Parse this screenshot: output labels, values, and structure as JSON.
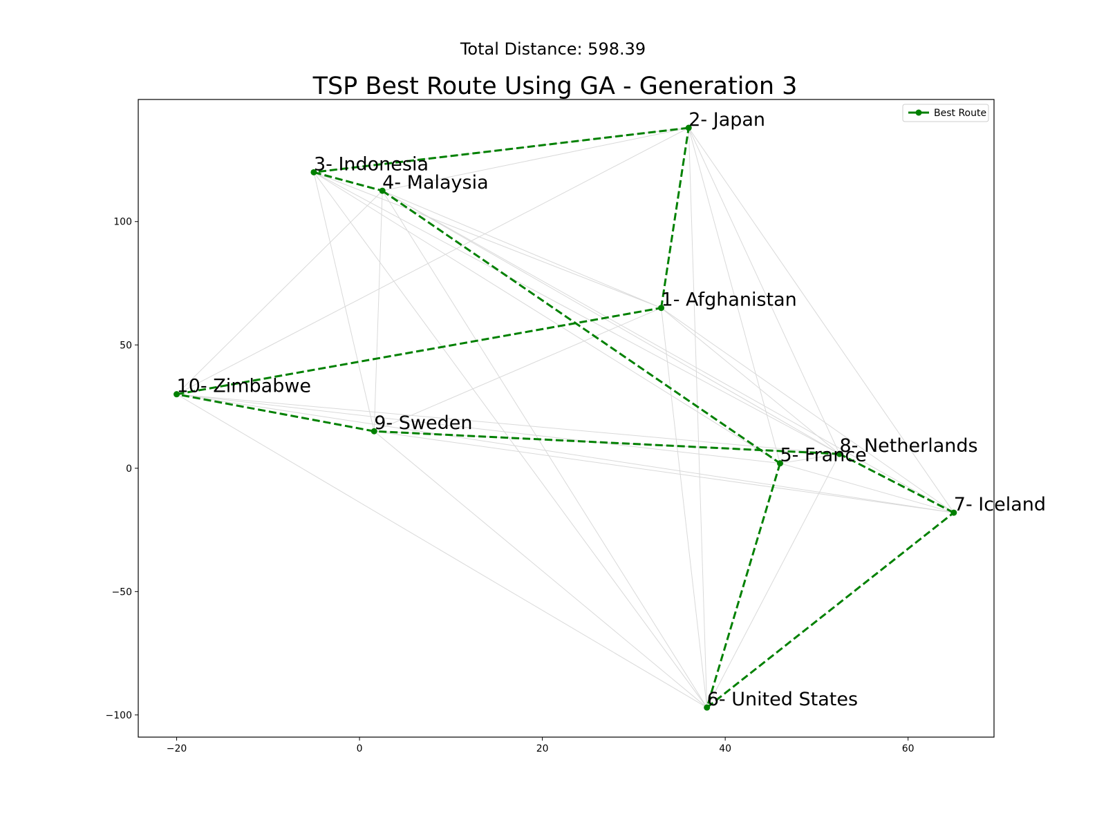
{
  "suptitle": "Total Distance: 598.39",
  "chart_data": {
    "type": "line",
    "title": "TSP Best Route Using GA - Generation 3",
    "xlabel": "",
    "ylabel": "",
    "xlim": [
      -24.2,
      69.4
    ],
    "ylim": [
      -109.0,
      149.5
    ],
    "xticks": [
      -20,
      0,
      20,
      40,
      60
    ],
    "yticks": [
      -100,
      -50,
      0,
      50,
      100
    ],
    "xtick_labels": [
      "−20",
      "0",
      "20",
      "40",
      "60"
    ],
    "ytick_labels": [
      "−100",
      "−50",
      "0",
      "50",
      "100"
    ],
    "grid": false,
    "legend": {
      "placement": "top-right",
      "entries": [
        "Best Route"
      ]
    },
    "points": [
      {
        "label": "1- Afghanistan",
        "x": 33.0,
        "y": 65.0
      },
      {
        "label": "2- Japan",
        "x": 36.0,
        "y": 138.0
      },
      {
        "label": "3- Indonesia",
        "x": -5.0,
        "y": 120.0
      },
      {
        "label": "4- Malaysia",
        "x": 2.5,
        "y": 112.5
      },
      {
        "label": "5- France",
        "x": 46.0,
        "y": 2.0
      },
      {
        "label": "6- United States",
        "x": 38.0,
        "y": -97.0
      },
      {
        "label": "7- Iceland",
        "x": 65.0,
        "y": -18.0
      },
      {
        "label": "8- Netherlands",
        "x": 52.5,
        "y": 5.8
      },
      {
        "label": "9- Sweden",
        "x": 1.6,
        "y": 15.0
      },
      {
        "label": "10- Zimbabwe",
        "x": -20.0,
        "y": 30.0
      }
    ],
    "series": [
      {
        "name": "Best Route",
        "color": "#008000",
        "linestyle": "dashed",
        "marker": "circle",
        "route_order": [
          1,
          2,
          3,
          4,
          5,
          6,
          7,
          8,
          9,
          10,
          1
        ]
      }
    ],
    "background_edges": {
      "color": "#d9d9d9",
      "pairs": [
        [
          2,
          3
        ],
        [
          2,
          4
        ],
        [
          2,
          5
        ],
        [
          2,
          7
        ],
        [
          2,
          8
        ],
        [
          2,
          10
        ],
        [
          2,
          6
        ],
        [
          3,
          1
        ],
        [
          3,
          5
        ],
        [
          3,
          6
        ],
        [
          3,
          8
        ],
        [
          3,
          9
        ],
        [
          4,
          1
        ],
        [
          4,
          6
        ],
        [
          4,
          7
        ],
        [
          4,
          8
        ],
        [
          4,
          9
        ],
        [
          4,
          10
        ],
        [
          1,
          6
        ],
        [
          1,
          7
        ],
        [
          1,
          8
        ],
        [
          1,
          9
        ],
        [
          10,
          5
        ],
        [
          10,
          6
        ],
        [
          10,
          7
        ],
        [
          10,
          8
        ],
        [
          9,
          6
        ],
        [
          9,
          7
        ],
        [
          9,
          8
        ],
        [
          5,
          7
        ],
        [
          5,
          8
        ],
        [
          8,
          6
        ]
      ]
    }
  }
}
